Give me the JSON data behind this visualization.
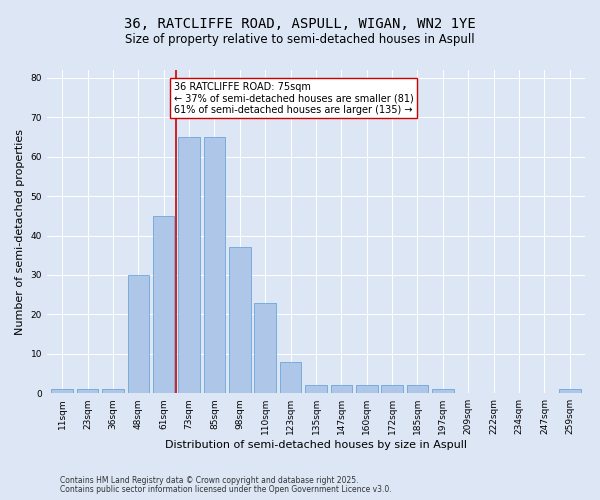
{
  "title_line1": "36, RATCLIFFE ROAD, ASPULL, WIGAN, WN2 1YE",
  "title_line2": "Size of property relative to semi-detached houses in Aspull",
  "xlabel": "Distribution of semi-detached houses by size in Aspull",
  "ylabel": "Number of semi-detached properties",
  "categories": [
    "11sqm",
    "23sqm",
    "36sqm",
    "48sqm",
    "61sqm",
    "73sqm",
    "85sqm",
    "98sqm",
    "110sqm",
    "123sqm",
    "135sqm",
    "147sqm",
    "160sqm",
    "172sqm",
    "185sqm",
    "197sqm",
    "209sqm",
    "222sqm",
    "234sqm",
    "247sqm",
    "259sqm"
  ],
  "values": [
    1,
    1,
    1,
    30,
    45,
    65,
    65,
    37,
    23,
    8,
    2,
    2,
    2,
    2,
    2,
    1,
    0,
    0,
    0,
    0,
    1
  ],
  "bar_color": "#aec6e8",
  "bar_edge_color": "#5b9bd5",
  "highlight_bar_index": 5,
  "highlight_color": "#cc0000",
  "annotation_text": "36 RATCLIFFE ROAD: 75sqm\n← 37% of semi-detached houses are smaller (81)\n61% of semi-detached houses are larger (135) →",
  "annotation_box_color": "#ffffff",
  "annotation_box_edge": "#cc0000",
  "ylim": [
    0,
    82
  ],
  "yticks": [
    0,
    10,
    20,
    30,
    40,
    50,
    60,
    70,
    80
  ],
  "background_color": "#dce6f5",
  "plot_bg_color": "#dce6f5",
  "footer_line1": "Contains HM Land Registry data © Crown copyright and database right 2025.",
  "footer_line2": "Contains public sector information licensed under the Open Government Licence v3.0.",
  "title_fontsize": 10,
  "subtitle_fontsize": 8.5,
  "axis_label_fontsize": 8,
  "tick_fontsize": 6.5,
  "annotation_fontsize": 7,
  "footer_fontsize": 5.5
}
